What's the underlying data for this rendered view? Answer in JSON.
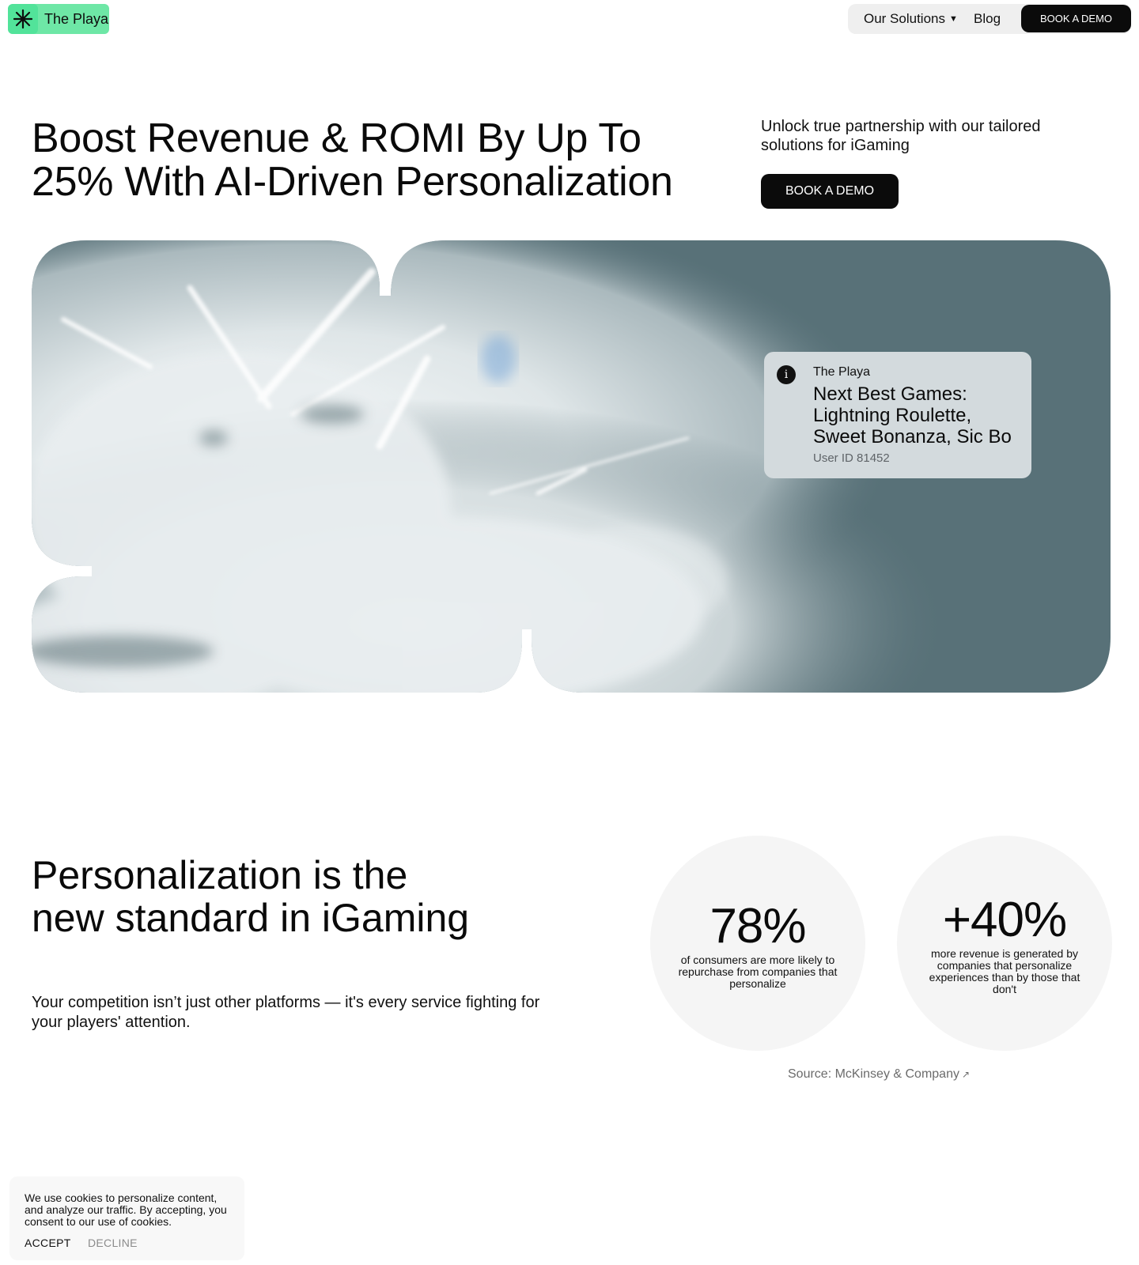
{
  "header": {
    "logo_text": "The Playa",
    "logo_icon": "asterisk-icon",
    "nav": {
      "solutions_label": "Our Solutions",
      "solutions_icon": "caret-down-icon",
      "blog_label": "Blog",
      "demo_label": "BOOK A DEMO"
    }
  },
  "hero": {
    "title": "Boost Revenue & ROMI By Up To 25% With AI-Driven Personalization",
    "subtitle": "Unlock true partnership with our tailored solutions for iGaming",
    "cta_label": "BOOK A DEMO"
  },
  "info_card": {
    "icon": "info-icon",
    "icon_glyph": "i",
    "brand": "The Playa",
    "text": "Next Best Games: Lightning Roulette, Sweet Bonanza, Sic Bo",
    "user_id": "User ID 81452"
  },
  "personalization": {
    "title": "Personalization is the new standard in iGaming",
    "subtitle": "Your competition isn’t just other platforms — it's every service fighting for your players' attention.",
    "stats": [
      {
        "value": "78%",
        "text": "of consumers are more likely to repurchase from companies that personalize"
      },
      {
        "value": "+40%",
        "text": "more revenue is generated by companies that personalize experiences than by those that don't"
      }
    ],
    "source_label": "Source: McKinsey & Company",
    "source_icon": "external-arrow-icon"
  },
  "cookie_banner": {
    "text": "We use cookies to personalize content, and analyze our traffic. By accepting, you consent to our use of cookies.",
    "accept_label": "ACCEPT",
    "decline_label": "DECLINE"
  },
  "colors": {
    "brand_green": "#6ee7a6",
    "button_black": "#0b0b0b",
    "visual_slate": "#587178",
    "card_grey": "#d3dadd"
  }
}
